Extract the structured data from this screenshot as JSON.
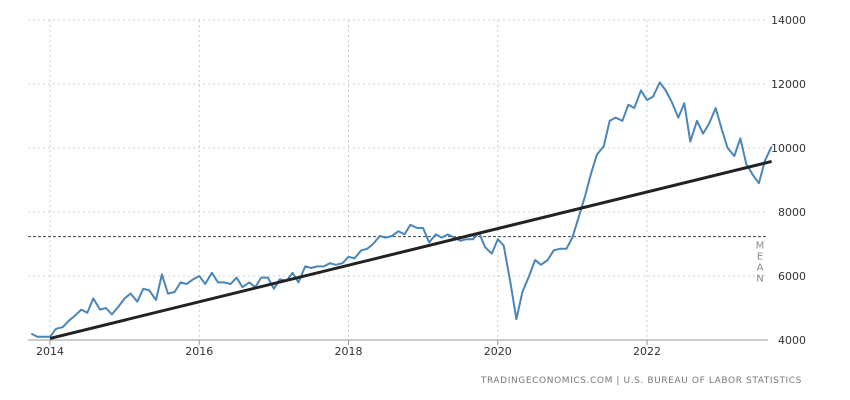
{
  "chart_data": {
    "type": "line",
    "title": "",
    "xlabel": "",
    "ylabel": "",
    "xlim": [
      2013.75,
      2023.75
    ],
    "ylim": [
      4000,
      14000
    ],
    "grid": true,
    "x_ticks": [
      2014,
      2016,
      2018,
      2020,
      2022
    ],
    "x_tick_labels": [
      "2014",
      "2016",
      "2018",
      "2020",
      "2022"
    ],
    "y_ticks": [
      4000,
      6000,
      8000,
      10000,
      12000,
      14000
    ],
    "y_tick_labels": [
      "4000",
      "6000",
      "8000",
      "10000",
      "12000",
      "14000"
    ],
    "colors": {
      "series": "#4a86b8",
      "trend": "#222222",
      "mean": "#444444",
      "grid": "#cccccc"
    },
    "series": [
      {
        "x": [
          2013.75,
          2013.83,
          2013.92,
          2014.0,
          2014.08,
          2014.17,
          2014.25,
          2014.33,
          2014.42,
          2014.5,
          2014.58,
          2014.67,
          2014.75,
          2014.83,
          2014.92,
          2015.0,
          2015.08,
          2015.17,
          2015.25,
          2015.33,
          2015.42,
          2015.5,
          2015.58,
          2015.67,
          2015.75,
          2015.83,
          2015.92,
          2016.0,
          2016.08,
          2016.17,
          2016.25,
          2016.33,
          2016.42,
          2016.5,
          2016.58,
          2016.67,
          2016.75,
          2016.83,
          2016.92,
          2017.0,
          2017.08,
          2017.17,
          2017.25,
          2017.33,
          2017.42,
          2017.5,
          2017.58,
          2017.67,
          2017.75,
          2017.83,
          2017.92,
          2018.0,
          2018.08,
          2018.17,
          2018.25,
          2018.33,
          2018.42,
          2018.5,
          2018.58,
          2018.67,
          2018.75,
          2018.83,
          2018.92,
          2019.0,
          2019.08,
          2019.17,
          2019.25,
          2019.33,
          2019.42,
          2019.5,
          2019.58,
          2019.67,
          2019.75,
          2019.83,
          2019.92,
          2020.0,
          2020.08,
          2020.17,
          2020.25,
          2020.33,
          2020.42,
          2020.5,
          2020.58,
          2020.67,
          2020.75,
          2020.83,
          2020.92,
          2021.0,
          2021.08,
          2021.17,
          2021.25,
          2021.33,
          2021.42,
          2021.5,
          2021.58,
          2021.67,
          2021.75,
          2021.83,
          2021.92,
          2022.0,
          2022.08,
          2022.17,
          2022.25,
          2022.33,
          2022.42,
          2022.5,
          2022.58,
          2022.67,
          2022.75,
          2022.83,
          2022.92,
          2023.0,
          2023.08,
          2023.17,
          2023.25,
          2023.33,
          2023.42,
          2023.5,
          2023.58,
          2023.67
        ],
        "values": [
          4200,
          4100,
          4100,
          4100,
          4350,
          4400,
          4600,
          4750,
          4950,
          4850,
          5300,
          4950,
          5000,
          4800,
          5050,
          5300,
          5450,
          5200,
          5600,
          5550,
          5250,
          6050,
          5450,
          5500,
          5800,
          5750,
          5900,
          6000,
          5750,
          6100,
          5800,
          5800,
          5750,
          5950,
          5650,
          5800,
          5650,
          5950,
          5950,
          5600,
          5900,
          5850,
          6100,
          5800,
          6300,
          6250,
          6300,
          6300,
          6400,
          6350,
          6400,
          6600,
          6550,
          6800,
          6850,
          7000,
          7250,
          7200,
          7250,
          7400,
          7300,
          7600,
          7500,
          7500,
          7050,
          7300,
          7200,
          7300,
          7200,
          7100,
          7150,
          7150,
          7350,
          6900,
          6700,
          7150,
          6950,
          5800,
          4650,
          5500,
          6000,
          6500,
          6350,
          6500,
          6800,
          6850,
          6850,
          7200,
          7800,
          8500,
          9200,
          9800,
          10050,
          10850,
          10950,
          10850,
          11350,
          11250,
          11800,
          11500,
          11600,
          12050,
          11800,
          11450,
          10950,
          11400,
          10200,
          10850,
          10450,
          10750,
          11250,
          10600,
          10000,
          9750,
          10300,
          9500,
          9150,
          8900,
          9600,
          10050
        ]
      }
    ],
    "trend": {
      "x": [
        2014.0,
        2023.67
      ],
      "values": [
        4050,
        9580
      ]
    },
    "mean": {
      "value": 7230,
      "label": "MEAN"
    },
    "source": "TRADINGECONOMICS.COM | U.S. BUREAU OF LABOR STATISTICS"
  }
}
